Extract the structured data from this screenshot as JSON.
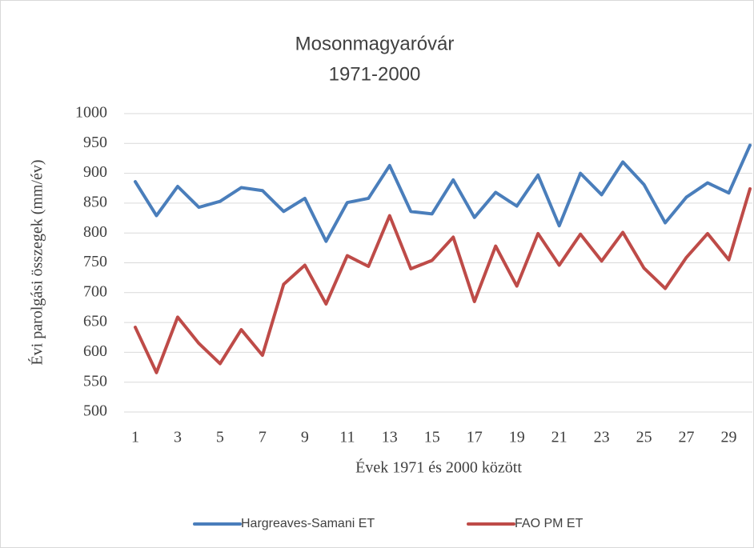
{
  "chart_data": {
    "type": "line",
    "title": "Mosonmagyaróvár",
    "subtitle": "1971-2000",
    "x_label": "Évek 1971 és 2000 között",
    "y_label": "Évi parolgási összegek (mm/év)",
    "categories": [
      1,
      null,
      3,
      null,
      5,
      null,
      7,
      null,
      9,
      null,
      11,
      null,
      13,
      null,
      15,
      null,
      17,
      null,
      19,
      null,
      21,
      null,
      23,
      null,
      25,
      null,
      27,
      null,
      29,
      null
    ],
    "series": [
      {
        "name": "Hargreaves-Samani ET",
        "color": "#4a7ebb",
        "values": [
          886,
          829,
          878,
          843,
          853,
          876,
          871,
          836,
          858,
          786,
          851,
          858,
          913,
          836,
          832,
          889,
          826,
          868,
          845,
          897,
          812,
          900,
          864,
          919,
          881,
          817,
          860,
          884,
          867,
          947
        ]
      },
      {
        "name": "FAO PM ET",
        "color": "#be4b48",
        "values": [
          642,
          566,
          659,
          615,
          581,
          638,
          595,
          714,
          746,
          681,
          762,
          744,
          829,
          740,
          754,
          793,
          685,
          778,
          711,
          799,
          746,
          798,
          753,
          801,
          741,
          707,
          759,
          799,
          755,
          874
        ]
      }
    ],
    "ylim": [
      500,
      1000
    ],
    "yticks": [
      500,
      550,
      600,
      650,
      700,
      750,
      800,
      850,
      900,
      950,
      1000
    ],
    "grid": true,
    "legend": "bottom"
  }
}
